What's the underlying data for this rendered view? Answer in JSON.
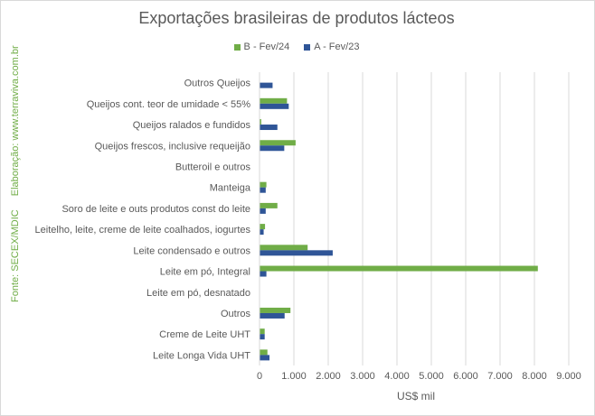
{
  "chart_data": {
    "type": "bar",
    "orientation": "horizontal",
    "title": "Exportações brasileiras de produtos lácteos",
    "xlabel": "US$ mil",
    "ylabel": "",
    "xlim": [
      0,
      9000
    ],
    "xticks": [
      0,
      1000,
      2000,
      3000,
      4000,
      5000,
      6000,
      7000,
      8000,
      9000
    ],
    "xtick_labels": [
      "0",
      "1.000",
      "2.000",
      "3.000",
      "4.000",
      "5.000",
      "6.000",
      "7.000",
      "8.000",
      "9.000"
    ],
    "grid": "vertical",
    "legend_position": "top",
    "categories": [
      "Outros Queijos",
      "Queijos cont. teor de umidade < 55%",
      "Queijos ralados e fundidos",
      "Queijos frescos, inclusive requeijão",
      "Butteroil e outros",
      "Manteiga",
      "Soro de leite e outs produtos const do leite",
      "Leitelho, leite, creme de leite coalhados, iogurtes",
      "Leite condensado e outros",
      "Leite em pó, Integral",
      "Leite em pó, desnatado",
      "Outros",
      "Creme de Leite UHT",
      "Leite Longa Vida UHT"
    ],
    "series": [
      {
        "name": "B - Fev/24",
        "color": "#70ad47",
        "values": [
          0,
          800,
          50,
          1050,
          0,
          200,
          520,
          160,
          1400,
          8100,
          0,
          900,
          150,
          230
        ]
      },
      {
        "name": "A - Fev/23",
        "color": "#2f5597",
        "values": [
          380,
          850,
          520,
          720,
          0,
          180,
          180,
          120,
          2130,
          200,
          0,
          730,
          150,
          290
        ]
      }
    ]
  },
  "side_note": {
    "source": "Fonte: SECEX/MDIC",
    "credit": "Elaboração: www.terraviva.com.br"
  }
}
